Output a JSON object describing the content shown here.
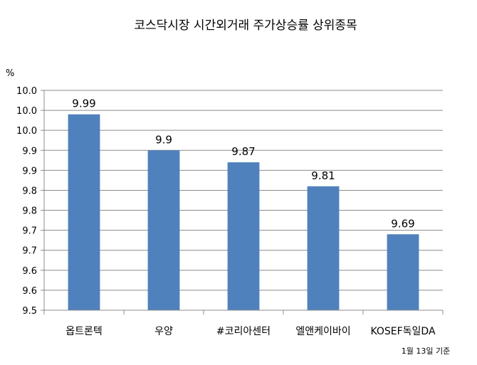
{
  "chart_data": {
    "type": "bar",
    "title": "코스닥시장 시간외거래  주가상승률 상위종목",
    "ylabel": "%",
    "categories": [
      "옵트론텍",
      "우양",
      "#코리아센터",
      "엘앤케이바이",
      "KOSEF독일DA"
    ],
    "values": [
      9.99,
      9.9,
      9.87,
      9.81,
      9.69
    ],
    "data_labels": [
      "9.99",
      "9.9",
      "9.87",
      "9.81",
      "9.69"
    ],
    "ylim": [
      9.5,
      10.05
    ],
    "y_ticks": [
      9.5,
      9.55,
      9.6,
      9.65,
      9.7,
      9.75,
      9.8,
      9.85,
      9.9,
      9.95,
      10.0,
      10.05
    ],
    "y_tick_labels": [
      "9.5",
      "9.6",
      "9.6",
      "9.7",
      "9.7",
      "9.8",
      "9.8",
      "9.9",
      "9.9",
      "10.0",
      "10.0",
      "10.0"
    ],
    "grid": true,
    "legend": "none",
    "bar_color": "#4f81bd",
    "note": "1월 13일 기준"
  }
}
